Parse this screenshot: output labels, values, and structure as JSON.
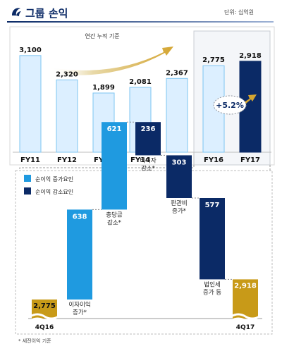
{
  "header": {
    "title": "그룹 손익",
    "unit": "단위: 십억원",
    "logo_icon": "shinhan-logo-icon"
  },
  "colors": {
    "light_blue": "#1f9ae0",
    "light_blue_fill": "#dcefff",
    "light_blue_stroke": "#7cc4f2",
    "navy": "#0b2a66",
    "gold": "#c89a18",
    "arrow_gold": "#d4a531"
  },
  "chart_data": [
    {
      "type": "bar",
      "categories": [
        "FY11",
        "FY12",
        "FY13",
        "FY14",
        "FY15",
        "FY16",
        "FY17"
      ],
      "values": [
        3100,
        2320,
        1899,
        2081,
        2367,
        2775,
        2918
      ],
      "value_labels": [
        "3,100",
        "2,320",
        "1,899",
        "2,081",
        "2,367",
        "2,775",
        "2,918"
      ],
      "annotation": "연간 누적 기준",
      "growth_label": "+5.2%",
      "ylim": [
        0,
        3300
      ]
    },
    {
      "type": "bar",
      "subtype": "waterfall",
      "legend": [
        {
          "label": "순이익 증가요인",
          "color": "#1f9ae0"
        },
        {
          "label": "순이익 감소요인",
          "color": "#0b2a66"
        }
      ],
      "start": {
        "label": "4Q16",
        "value": 2775,
        "value_label": "2,775"
      },
      "steps": [
        {
          "label_lines": [
            "이자이익",
            "증가*"
          ],
          "value": 638,
          "value_label": "638",
          "direction": "increase"
        },
        {
          "label_lines": [
            "충당금",
            "감소*"
          ],
          "value": 621,
          "value_label": "621",
          "direction": "increase"
        },
        {
          "label_lines": [
            "비이자",
            "감소*"
          ],
          "value": -236,
          "value_label": "236",
          "direction": "decrease"
        },
        {
          "label_lines": [
            "판관비",
            "증가*"
          ],
          "value": -303,
          "value_label": "303",
          "direction": "decrease"
        },
        {
          "label_lines": [
            "법인세",
            "증가 등"
          ],
          "value": -577,
          "value_label": "577",
          "direction": "decrease"
        }
      ],
      "end": {
        "label": "4Q17",
        "value": 2918,
        "value_label": "2,918"
      },
      "footnote": "* 세전이익 기준"
    }
  ]
}
